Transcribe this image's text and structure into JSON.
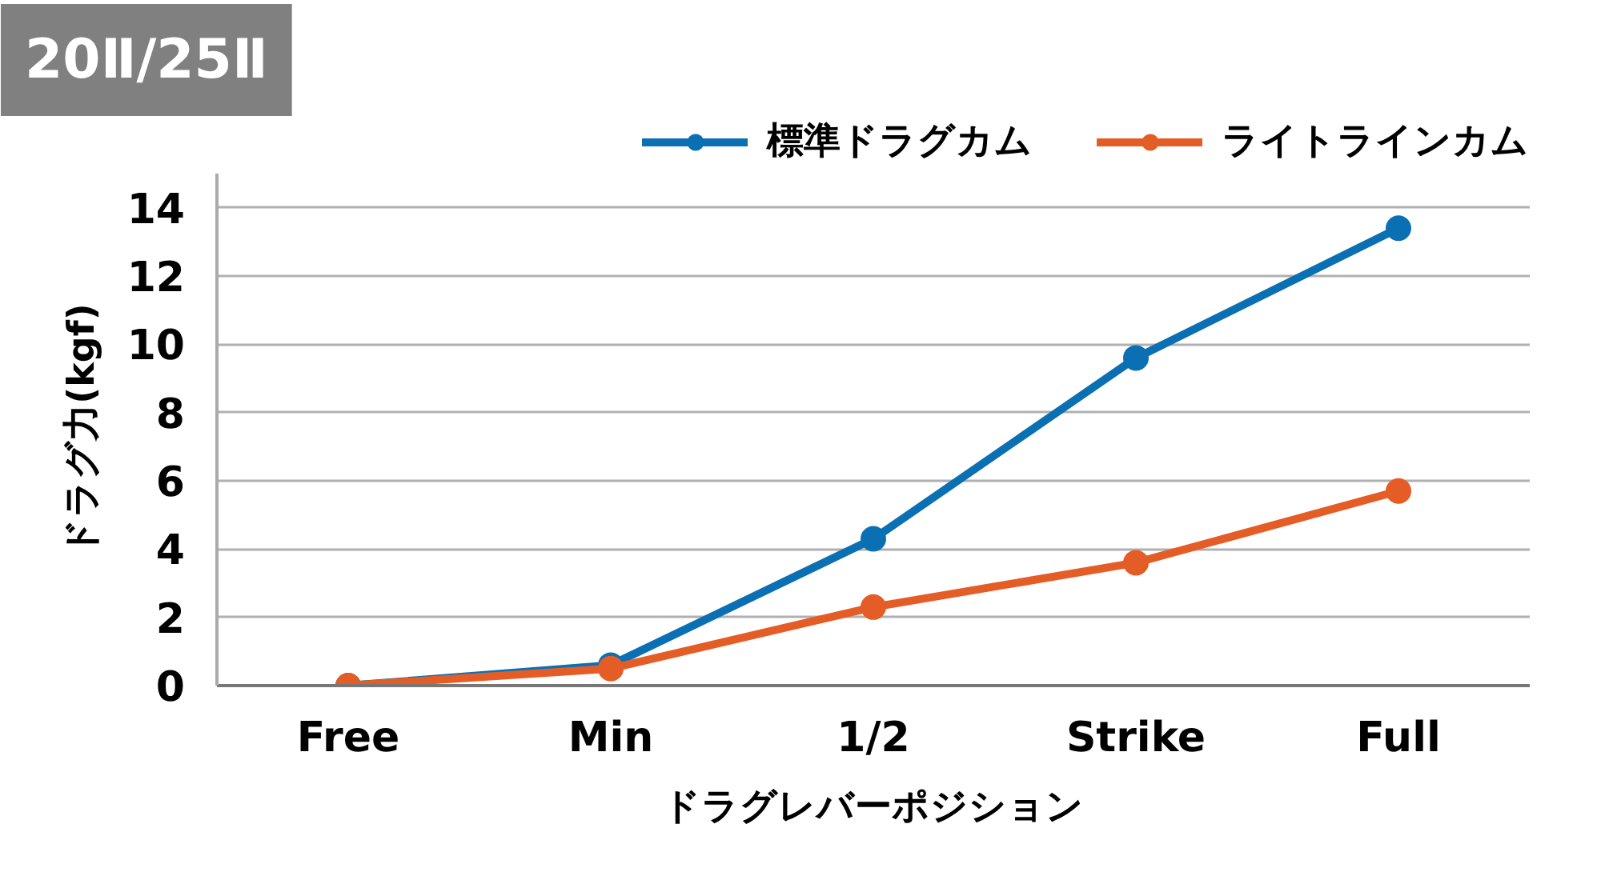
{
  "chart_data": {
    "type": "line",
    "title": "20Ⅱ/25Ⅱ",
    "xlabel": "ドラグレバーポジション",
    "ylabel": "ドラグ力(kgf)",
    "categories": [
      "Free",
      "Min",
      "1/2",
      "Strike",
      "Full"
    ],
    "series": [
      {
        "name": "標準ドラグカム",
        "color": "#0b70b3",
        "values": [
          0,
          0.6,
          4.3,
          9.6,
          13.4
        ]
      },
      {
        "name": "ライトラインカム",
        "color": "#e55d26",
        "values": [
          0,
          0.5,
          2.3,
          3.6,
          5.7
        ]
      }
    ],
    "ylim": [
      0,
      15
    ],
    "yticks": [
      0,
      2,
      4,
      6,
      8,
      10,
      12,
      14
    ],
    "grid": "y",
    "legend": "top right",
    "marker": "circle",
    "line_style": "solid"
  }
}
